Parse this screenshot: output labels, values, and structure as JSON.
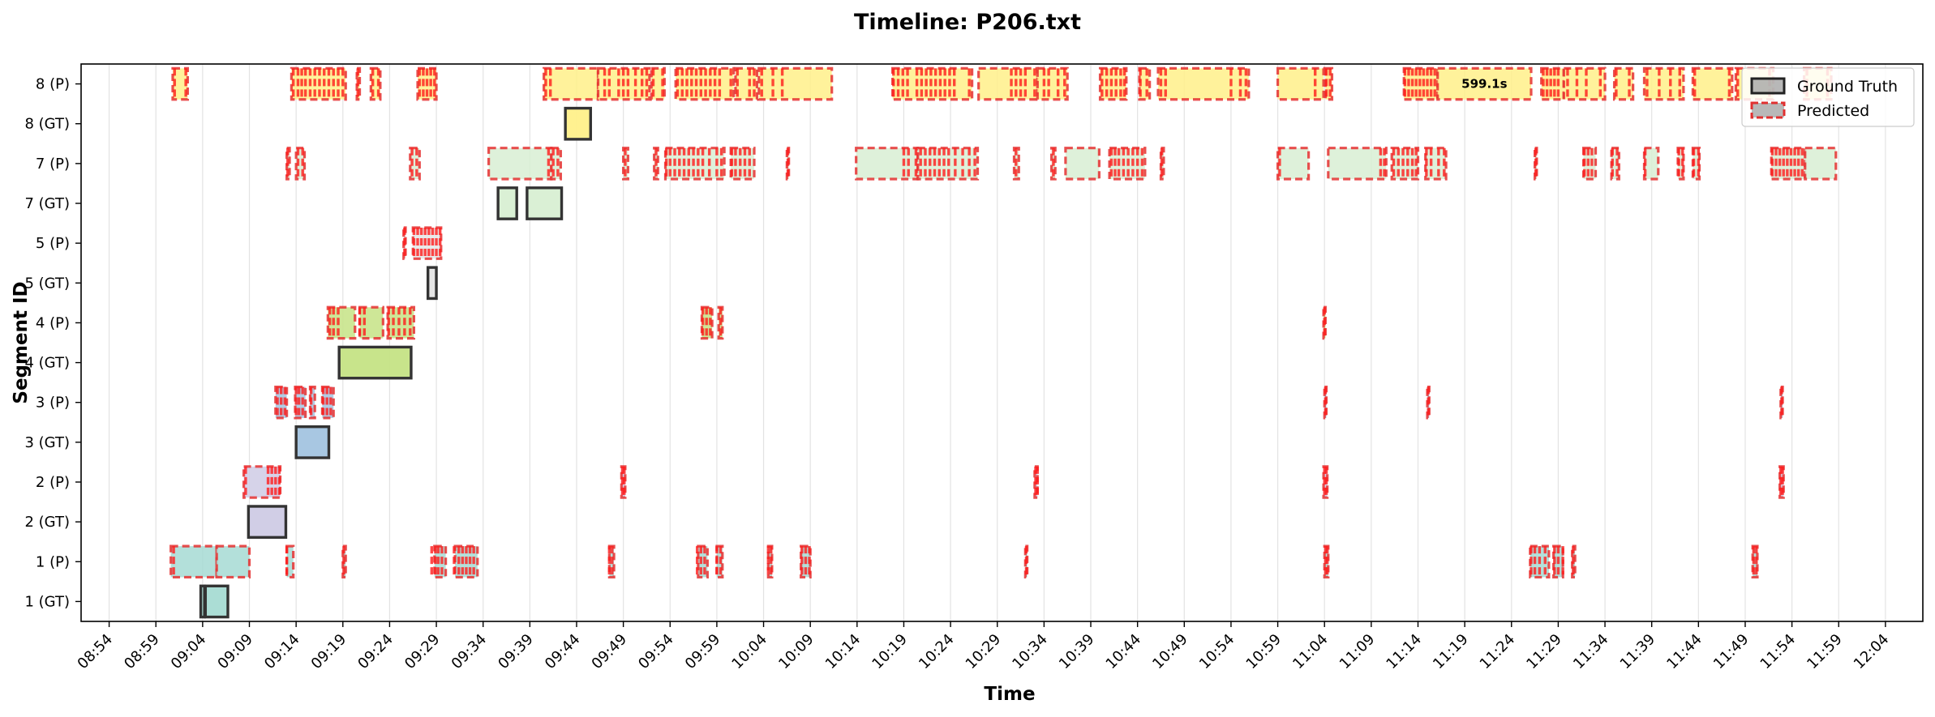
{
  "chart_data": {
    "type": "timeline",
    "title": "Timeline: P206.txt",
    "xlabel": "Time",
    "ylabel": "Segment ID",
    "x_range": [
      "08:51",
      "12:08"
    ],
    "x_ticks": [
      "08:54",
      "08:59",
      "09:04",
      "09:09",
      "09:14",
      "09:19",
      "09:24",
      "09:29",
      "09:34",
      "09:39",
      "09:44",
      "09:49",
      "09:54",
      "09:59",
      "10:04",
      "10:09",
      "10:14",
      "10:19",
      "10:24",
      "10:29",
      "10:34",
      "10:39",
      "10:44",
      "10:49",
      "10:54",
      "10:59",
      "11:04",
      "11:09",
      "11:14",
      "11:19",
      "11:24",
      "11:29",
      "11:34",
      "11:39",
      "11:44",
      "11:49",
      "11:54",
      "11:59",
      "12:04"
    ],
    "categories": [
      "1 (GT)",
      "1 (P)",
      "2 (GT)",
      "2 (P)",
      "3 (GT)",
      "3 (P)",
      "4 (GT)",
      "4 (P)",
      "5 (GT)",
      "5 (P)",
      "7 (GT)",
      "7 (P)",
      "8 (GT)",
      "8 (P)"
    ],
    "grid": "vertical",
    "legend": {
      "position": "top-right",
      "entries": [
        {
          "label": "Ground Truth",
          "style": "solid"
        },
        {
          "label": "Predicted",
          "style": "dashed"
        }
      ]
    },
    "segment_colors": {
      "1": "#a6dbd3",
      "2": "#cfcbe5",
      "3": "#a3c4e0",
      "4": "#c5e385",
      "5": "#e5e5e5",
      "7": "#d8efd3",
      "8": "#fff08a"
    },
    "ground_truth": [
      {
        "segment": "1",
        "start": "09:03.8",
        "end": "09:04.2"
      },
      {
        "segment": "1",
        "start": "09:04.3",
        "end": "09:06.7"
      },
      {
        "segment": "2",
        "start": "09:08.9",
        "end": "09:12.9"
      },
      {
        "segment": "3",
        "start": "09:14.0",
        "end": "09:17.5"
      },
      {
        "segment": "4",
        "start": "09:18.6",
        "end": "09:26.3"
      },
      {
        "segment": "5",
        "start": "09:28.1",
        "end": "09:29.0"
      },
      {
        "segment": "7",
        "start": "09:35.6",
        "end": "09:37.6"
      },
      {
        "segment": "7",
        "start": "09:38.7",
        "end": "09:42.4"
      },
      {
        "segment": "8",
        "start": "09:42.8",
        "end": "09:45.5"
      }
    ],
    "predicted": [
      {
        "segment": "1",
        "start": "09:00.6",
        "end": "09:05.5"
      },
      {
        "segment": "1",
        "start": "09:05.5",
        "end": "09:09.0"
      },
      {
        "segment": "1",
        "start": "09:13.0",
        "end": "09:13.7"
      },
      {
        "segment": "1",
        "start": "09:19.0",
        "end": "09:19.3"
      },
      {
        "segment": "1",
        "start": "09:28.8",
        "end": "09:30.0"
      },
      {
        "segment": "1",
        "start": "09:31.0",
        "end": "09:33.4"
      },
      {
        "segment": "1",
        "start": "09:47.5",
        "end": "09:48.0"
      },
      {
        "segment": "1",
        "start": "09:57.0",
        "end": "09:58.0"
      },
      {
        "segment": "1",
        "start": "09:59.0",
        "end": "09:59.6"
      },
      {
        "segment": "1",
        "start": "10:04.5",
        "end": "10:04.9"
      },
      {
        "segment": "1",
        "start": "10:08.0",
        "end": "10:09.0"
      },
      {
        "segment": "1",
        "start": "10:32.0",
        "end": "10:32.2"
      },
      {
        "segment": "1",
        "start": "11:04.0",
        "end": "11:04.4"
      },
      {
        "segment": "1",
        "start": "11:26.0",
        "end": "11:28.0"
      },
      {
        "segment": "1",
        "start": "11:28.5",
        "end": "11:29.5"
      },
      {
        "segment": "1",
        "start": "11:30.5",
        "end": "11:30.8"
      },
      {
        "segment": "1",
        "start": "11:49.8",
        "end": "11:50.3"
      },
      {
        "segment": "2",
        "start": "09:08.4",
        "end": "09:12.3"
      },
      {
        "segment": "2",
        "start": "09:48.8",
        "end": "09:49.2"
      },
      {
        "segment": "2",
        "start": "10:33.0",
        "end": "10:33.3"
      },
      {
        "segment": "2",
        "start": "11:03.9",
        "end": "11:04.3"
      },
      {
        "segment": "2",
        "start": "11:52.7",
        "end": "11:53.1"
      },
      {
        "segment": "3",
        "start": "09:11.8",
        "end": "09:13.0"
      },
      {
        "segment": "3",
        "start": "09:13.9",
        "end": "09:15.0"
      },
      {
        "segment": "3",
        "start": "09:15.5",
        "end": "09:16.0"
      },
      {
        "segment": "3",
        "start": "09:16.8",
        "end": "09:18.0"
      },
      {
        "segment": "3",
        "start": "11:04.0",
        "end": "11:04.2"
      },
      {
        "segment": "3",
        "start": "11:15.0",
        "end": "11:15.2"
      },
      {
        "segment": "3",
        "start": "11:52.8",
        "end": "11:53.0"
      },
      {
        "segment": "4",
        "start": "09:17.4",
        "end": "09:20.3"
      },
      {
        "segment": "4",
        "start": "09:20.8",
        "end": "09:23.3"
      },
      {
        "segment": "4",
        "start": "09:23.8",
        "end": "09:26.6"
      },
      {
        "segment": "4",
        "start": "09:57.4",
        "end": "09:58.5"
      },
      {
        "segment": "4",
        "start": "09:59.2",
        "end": "09:59.6"
      },
      {
        "segment": "4",
        "start": "11:03.9",
        "end": "11:04.1"
      },
      {
        "segment": "5",
        "start": "09:25.5",
        "end": "09:25.7"
      },
      {
        "segment": "5",
        "start": "09:26.5",
        "end": "09:29.5"
      },
      {
        "segment": "7",
        "start": "09:13.0",
        "end": "09:13.3"
      },
      {
        "segment": "7",
        "start": "09:14.0",
        "end": "09:14.9"
      },
      {
        "segment": "7",
        "start": "09:26.2",
        "end": "09:27.2"
      },
      {
        "segment": "7",
        "start": "09:34.6",
        "end": "09:41.3"
      },
      {
        "segment": "7",
        "start": "09:41.3",
        "end": "09:42.3"
      },
      {
        "segment": "7",
        "start": "09:49.0",
        "end": "09:49.5"
      },
      {
        "segment": "7",
        "start": "09:52.3",
        "end": "09:52.7"
      },
      {
        "segment": "7",
        "start": "09:53.5",
        "end": "09:59.8"
      },
      {
        "segment": "7",
        "start": "10:00.5",
        "end": "10:03.0"
      },
      {
        "segment": "7",
        "start": "10:06.5",
        "end": "10:06.7"
      },
      {
        "segment": "7",
        "start": "10:13.9",
        "end": "10:20.5"
      },
      {
        "segment": "7",
        "start": "10:20.5",
        "end": "10:26.9"
      },
      {
        "segment": "7",
        "start": "10:30.8",
        "end": "10:31.3"
      },
      {
        "segment": "7",
        "start": "10:34.8",
        "end": "10:35.2"
      },
      {
        "segment": "7",
        "start": "10:36.3",
        "end": "10:39.9"
      },
      {
        "segment": "7",
        "start": "10:41.0",
        "end": "10:44.8"
      },
      {
        "segment": "7",
        "start": "10:46.5",
        "end": "10:46.8"
      },
      {
        "segment": "7",
        "start": "10:59.0",
        "end": "11:02.3"
      },
      {
        "segment": "7",
        "start": "11:04.4",
        "end": "11:10.6"
      },
      {
        "segment": "7",
        "start": "11:11.2",
        "end": "11:14.0"
      },
      {
        "segment": "7",
        "start": "11:14.8",
        "end": "11:17.0"
      },
      {
        "segment": "7",
        "start": "11:26.5",
        "end": "11:26.7"
      },
      {
        "segment": "7",
        "start": "11:31.7",
        "end": "11:33.0"
      },
      {
        "segment": "7",
        "start": "11:34.7",
        "end": "11:35.5"
      },
      {
        "segment": "7",
        "start": "11:38.2",
        "end": "11:39.7"
      },
      {
        "segment": "7",
        "start": "11:41.8",
        "end": "11:42.4"
      },
      {
        "segment": "7",
        "start": "11:43.4",
        "end": "11:44.1"
      },
      {
        "segment": "7",
        "start": "11:51.8",
        "end": "11:55.4"
      },
      {
        "segment": "7",
        "start": "11:55.4",
        "end": "11:58.7"
      },
      {
        "segment": "8",
        "start": "09:00.8",
        "end": "09:02.4"
      },
      {
        "segment": "8",
        "start": "09:13.5",
        "end": "09:19.3"
      },
      {
        "segment": "8",
        "start": "09:20.5",
        "end": "09:20.8"
      },
      {
        "segment": "8",
        "start": "09:22.0",
        "end": "09:23.0"
      },
      {
        "segment": "8",
        "start": "09:27.0",
        "end": "09:29.0"
      },
      {
        "segment": "8",
        "start": "09:40.5",
        "end": "09:46.3"
      },
      {
        "segment": "8",
        "start": "09:46.3",
        "end": "09:51.8"
      },
      {
        "segment": "8",
        "start": "09:52.0",
        "end": "09:53.4"
      },
      {
        "segment": "8",
        "start": "09:54.6",
        "end": "10:00.8"
      },
      {
        "segment": "8",
        "start": "10:01.0",
        "end": "10:03.3"
      },
      {
        "segment": "8",
        "start": "10:03.5",
        "end": "10:11.3"
      },
      {
        "segment": "8",
        "start": "10:17.8",
        "end": "10:26.3"
      },
      {
        "segment": "8",
        "start": "10:27.0",
        "end": "10:33.3"
      },
      {
        "segment": "8",
        "start": "10:33.3",
        "end": "10:36.5"
      },
      {
        "segment": "8",
        "start": "10:40.0",
        "end": "10:42.8"
      },
      {
        "segment": "8",
        "start": "10:44.2",
        "end": "10:45.3"
      },
      {
        "segment": "8",
        "start": "10:46.2",
        "end": "10:55.9"
      },
      {
        "segment": "8",
        "start": "10:59.0",
        "end": "11:03.9"
      },
      {
        "segment": "8",
        "start": "11:04.1",
        "end": "11:04.8"
      },
      {
        "segment": "8",
        "start": "11:12.5",
        "end": "11:16.1"
      },
      {
        "segment": "8",
        "start": "11:16.1",
        "end": "11:26.1",
        "label": "599.1s"
      },
      {
        "segment": "8",
        "start": "11:27.2",
        "end": "11:29.6"
      },
      {
        "segment": "8",
        "start": "11:29.6",
        "end": "11:34.0"
      },
      {
        "segment": "8",
        "start": "11:35.0",
        "end": "11:37.0"
      },
      {
        "segment": "8",
        "start": "11:38.2",
        "end": "11:42.4"
      },
      {
        "segment": "8",
        "start": "11:43.4",
        "end": "11:47.6"
      },
      {
        "segment": "8",
        "start": "11:48.0",
        "end": "11:52.0"
      },
      {
        "segment": "8",
        "start": "11:55.3",
        "end": "11:58.2"
      }
    ],
    "predicted_ticks": [
      {
        "segment": "1",
        "times": [
          "09:00.9",
          "09:13.0",
          "09:19.1",
          "09:28.5",
          "09:28.9",
          "09:29.2",
          "09:29.6",
          "09:30.9",
          "09:31.4",
          "09:31.8",
          "09:32.2",
          "09:32.6",
          "09:33.0",
          "09:47.5",
          "09:47.8",
          "09:56.9",
          "09:57.3",
          "09:57.7",
          "09:59.0",
          "09:59.4",
          "10:04.5",
          "10:04.8",
          "10:08.1",
          "10:08.5",
          "10:08.9",
          "10:32.1",
          "11:04.1",
          "11:04.3",
          "11:26.1",
          "11:26.5",
          "11:27.0",
          "11:27.6",
          "11:28.6",
          "11:29.0",
          "11:29.5",
          "11:30.6",
          "11:49.9",
          "11:50.2"
        ]
      },
      {
        "segment": "2",
        "times": [
          "09:08.6",
          "09:11.0",
          "09:11.4",
          "09:11.8",
          "09:12.2",
          "09:48.9",
          "09:49.1",
          "10:33.1",
          "10:33.3",
          "11:04.0",
          "11:04.2",
          "11:52.8",
          "11:53.0"
        ]
      },
      {
        "segment": "3",
        "times": [
          "09:12.0",
          "09:12.4",
          "09:12.8",
          "09:14.0",
          "09:14.3",
          "09:14.7",
          "09:15.6",
          "09:16.9",
          "09:17.3",
          "09:17.7",
          "11:04.1",
          "11:15.1",
          "11:52.9"
        ]
      },
      {
        "segment": "4",
        "times": [
          "09:17.6",
          "09:18.0",
          "09:18.5",
          "09:20.8",
          "09:21.3",
          "09:23.9",
          "09:24.4",
          "09:25.0",
          "09:25.6",
          "09:26.2",
          "09:57.5",
          "09:57.9",
          "09:58.3",
          "09:59.4",
          "11:04.0"
        ]
      },
      {
        "segment": "5",
        "times": [
          "09:25.6",
          "09:26.6",
          "09:27.0",
          "09:27.4",
          "09:27.8",
          "09:28.2",
          "09:28.6",
          "09:29.0",
          "09:29.4"
        ]
      },
      {
        "segment": "7",
        "times": [
          "09:13.1",
          "09:14.2",
          "09:14.7",
          "09:26.4",
          "09:26.9",
          "09:41.0",
          "09:41.5",
          "09:42.0",
          "09:49.2",
          "09:52.5",
          "09:53.6",
          "09:54.0",
          "09:54.5",
          "09:55.0",
          "09:55.5",
          "09:56.0",
          "09:56.5",
          "09:57.0",
          "09:57.5",
          "09:58.2",
          "09:59.0",
          "09:59.5",
          "10:00.6",
          "10:01.0",
          "10:01.5",
          "10:02.0",
          "10:02.5",
          "10:06.6",
          "10:19.0",
          "10:19.5",
          "10:20.3",
          "10:20.8",
          "10:21.3",
          "10:21.8",
          "10:22.3",
          "10:22.8",
          "10:23.3",
          "10:23.8",
          "10:24.5",
          "10:25.3",
          "10:26.0",
          "10:26.6",
          "10:31.0",
          "10:35.0",
          "10:41.2",
          "10:41.6",
          "10:42.0",
          "10:42.5",
          "10:43.0",
          "10:43.5",
          "10:44.0",
          "10:44.5",
          "10:46.6",
          "10:59.2",
          "11:10.0",
          "11:10.4",
          "11:11.4",
          "11:11.9",
          "11:12.4",
          "11:12.9",
          "11:13.4",
          "11:13.8",
          "11:14.9",
          "11:15.4",
          "11:16.2",
          "11:16.8",
          "11:26.6",
          "11:31.8",
          "11:32.2",
          "11:32.6",
          "11:34.8",
          "11:35.3",
          "11:38.3",
          "11:41.9",
          "11:42.3",
          "11:43.5",
          "11:44.0",
          "11:51.9",
          "11:52.3",
          "11:52.7",
          "11:53.1",
          "11:53.5",
          "11:53.9",
          "11:54.3",
          "11:54.7",
          "11:55.1"
        ]
      },
      {
        "segment": "8",
        "times": [
          "09:01.0",
          "09:02.2",
          "09:13.7",
          "09:14.2",
          "09:14.6",
          "09:15.0",
          "09:15.5",
          "09:16.0",
          "09:16.5",
          "09:17.0",
          "09:17.5",
          "09:18.0",
          "09:18.5",
          "09:19.0",
          "09:20.6",
          "09:22.2",
          "09:22.8",
          "09:27.2",
          "09:27.6",
          "09:28.0",
          "09:28.4",
          "09:28.8",
          "09:40.7",
          "09:41.2",
          "09:47.0",
          "09:47.5",
          "09:48.5",
          "09:49.0",
          "09:49.5",
          "09:50.3",
          "09:51.0",
          "09:51.5",
          "09:52.2",
          "09:53.2",
          "09:54.8",
          "09:55.3",
          "09:55.8",
          "09:56.3",
          "09:56.8",
          "09:57.3",
          "09:57.8",
          "09:58.3",
          "09:58.8",
          "09:59.3",
          "10:00.5",
          "10:01.2",
          "10:02.5",
          "10:03.0",
          "10:03.8",
          "10:05.0",
          "10:06.0",
          "10:17.9",
          "10:18.4",
          "10:18.9",
          "10:19.4",
          "10:20.4",
          "10:20.9",
          "10:21.4",
          "10:21.9",
          "10:22.4",
          "10:22.9",
          "10:23.4",
          "10:23.9",
          "10:24.4",
          "10:26.0",
          "10:30.5",
          "10:31.0",
          "10:31.5",
          "10:32.0",
          "10:33.0",
          "10:34.0",
          "10:34.5",
          "10:35.5",
          "10:36.2",
          "10:40.2",
          "10:40.7",
          "10:41.2",
          "10:41.7",
          "10:42.2",
          "10:42.6",
          "10:44.3",
          "10:45.0",
          "10:46.5",
          "10:47.0",
          "10:54.0",
          "10:55.0",
          "10:55.6",
          "11:03.0",
          "11:04.2",
          "11:04.6",
          "11:12.6",
          "11:13.0",
          "11:13.4",
          "11:13.8",
          "11:14.2",
          "11:14.6",
          "11:15.0",
          "11:15.4",
          "11:15.8",
          "11:27.4",
          "11:27.8",
          "11:28.2",
          "11:28.6",
          "11:29.0",
          "11:30.0",
          "11:31.0",
          "11:32.0",
          "11:33.5",
          "11:35.2",
          "11:36.6",
          "11:38.5",
          "11:39.8",
          "11:41.0",
          "11:42.0",
          "11:43.6",
          "11:47.3",
          "11:48.2",
          "11:51.6",
          "11:55.6",
          "11:57.8"
        ]
      }
    ]
  }
}
